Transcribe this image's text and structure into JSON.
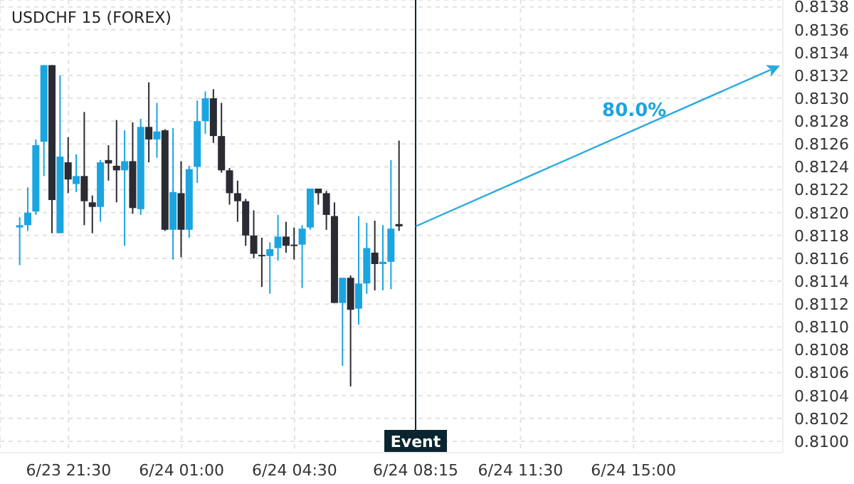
{
  "chart_data": {
    "type": "candlestick",
    "title": "USDCHF 15 (FOREX)",
    "categories": [
      null,
      null,
      null,
      null,
      null,
      null,
      null,
      null,
      "6/23 21:30",
      null,
      null,
      null,
      null,
      null,
      null,
      null,
      null,
      null,
      null,
      null,
      null,
      null,
      "6/24 01:00",
      null,
      null,
      null,
      null,
      null,
      null,
      null,
      null,
      null,
      null,
      null,
      null,
      null,
      "6/24 04:30",
      null,
      null,
      null,
      null,
      null,
      null,
      null,
      null,
      null,
      null,
      null,
      null,
      null,
      null,
      "6/24 08:15",
      null,
      null,
      null,
      null,
      null,
      null,
      null,
      null,
      null,
      null,
      null,
      null,
      "6/24 11:30",
      null,
      null,
      null,
      null,
      null,
      null,
      null,
      null,
      null,
      null,
      null,
      null,
      null,
      "6/24 15:00",
      null,
      null,
      null,
      null,
      null,
      null,
      null,
      null,
      null,
      null,
      null,
      null,
      null,
      null,
      null,
      null,
      null,
      null
    ],
    "ohlc": [
      null,
      null,
      [
        0.81187,
        0.81196,
        0.81154,
        0.81189
      ],
      [
        0.81189,
        0.81222,
        0.81184,
        0.812
      ],
      [
        0.81201,
        0.81264,
        0.81198,
        0.81259
      ],
      [
        0.81262,
        0.81329,
        0.81232,
        0.81329
      ],
      [
        0.81329,
        0.81329,
        0.81182,
        0.81211
      ],
      [
        0.81182,
        0.8132,
        0.81182,
        0.81249
      ],
      [
        0.81244,
        0.81266,
        0.81217,
        0.81229
      ],
      [
        0.81225,
        0.81251,
        0.81218,
        0.81232
      ],
      [
        0.81232,
        0.81288,
        0.81189,
        0.8121
      ],
      [
        0.81209,
        0.81215,
        0.81182,
        0.81205
      ],
      [
        0.81205,
        0.81246,
        0.81192,
        0.81244
      ],
      [
        0.81246,
        0.81259,
        0.81228,
        0.81243
      ],
      [
        0.81241,
        0.81281,
        0.81209,
        0.81237
      ],
      [
        0.81237,
        0.81272,
        0.81171,
        0.81245
      ],
      [
        0.81245,
        0.81279,
        0.81199,
        0.81204
      ],
      [
        0.81203,
        0.81282,
        0.81198,
        0.81275
      ],
      [
        0.81275,
        0.81314,
        0.81244,
        0.81264
      ],
      [
        0.81264,
        0.81296,
        0.81248,
        0.81271
      ],
      [
        0.81272,
        0.81273,
        0.81184,
        0.81185
      ],
      [
        0.81185,
        0.81274,
        0.81159,
        0.81218
      ],
      [
        0.81217,
        0.81245,
        0.81161,
        0.81185
      ],
      [
        0.81185,
        0.81241,
        0.81178,
        0.81238
      ],
      [
        0.8124,
        0.81298,
        0.81226,
        0.8128
      ],
      [
        0.8128,
        0.81306,
        0.81269,
        0.813
      ],
      [
        0.813,
        0.81308,
        0.81261,
        0.81267
      ],
      [
        0.81267,
        0.81296,
        0.81235,
        0.81237
      ],
      [
        0.81237,
        0.81239,
        0.81207,
        0.81217
      ],
      [
        0.81217,
        0.81228,
        0.81192,
        0.8121
      ],
      [
        0.8121,
        0.81212,
        0.81171,
        0.8118
      ],
      [
        0.8118,
        0.81202,
        0.8116,
        0.81164
      ],
      [
        0.81163,
        0.81178,
        0.81135,
        0.81162
      ],
      [
        0.81162,
        0.81174,
        0.81129,
        0.81168
      ],
      [
        0.81169,
        0.81198,
        0.81158,
        0.81179
      ],
      [
        0.81179,
        0.81192,
        0.81165,
        0.81171
      ],
      [
        0.81172,
        0.81187,
        0.81159,
        0.81171
      ],
      [
        0.81172,
        0.81189,
        0.81134,
        0.81186
      ],
      [
        0.81187,
        0.81221,
        0.81185,
        0.81221
      ],
      [
        0.81221,
        0.81221,
        0.81207,
        0.81217
      ],
      [
        0.81217,
        0.81219,
        0.81185,
        0.81198
      ],
      [
        0.81197,
        0.81209,
        0.81121,
        0.81121
      ],
      [
        0.81121,
        0.81143,
        0.81066,
        0.81143
      ],
      [
        0.81143,
        0.81145,
        0.81048,
        0.81115
      ],
      [
        0.81116,
        0.81197,
        0.81102,
        0.81138
      ],
      [
        0.81138,
        0.81191,
        0.81129,
        0.81169
      ],
      [
        0.81165,
        0.81193,
        0.81132,
        0.81155
      ],
      [
        0.81155,
        0.81189,
        0.81132,
        0.81157
      ],
      [
        0.81157,
        0.81246,
        0.81133,
        0.81186
      ],
      [
        0.8119,
        0.81263,
        0.81184,
        0.81188
      ],
      null,
      null,
      null,
      null,
      null,
      null,
      null,
      null,
      null,
      null,
      null,
      null,
      null,
      null,
      null,
      null,
      null,
      null,
      null,
      null,
      null,
      null,
      null,
      null,
      null,
      null,
      null,
      null,
      null,
      null,
      null,
      null,
      null,
      null,
      null,
      null,
      null,
      null,
      null,
      null,
      null,
      null,
      null,
      null,
      null,
      null,
      null
    ],
    "colors": [
      null,
      null,
      "#1ba5e0",
      "#1ba5e0",
      "#1ba5e0",
      "#1ba5e0",
      "#2a2b33",
      "#1ba5e0",
      "#2a2b33",
      "#1ba5e0",
      "#2a2b33",
      "#2a2b33",
      "#1ba5e0",
      "#2a2b33",
      "#2a2b33",
      "#1ba5e0",
      "#2a2b33",
      "#1ba5e0",
      "#2a2b33",
      "#1ba5e0",
      "#2a2b33",
      "#1ba5e0",
      "#2a2b33",
      "#1ba5e0",
      "#1ba5e0",
      "#1ba5e0",
      "#2a2b33",
      "#2a2b33",
      "#2a2b33",
      "#2a2b33",
      "#2a2b33",
      "#2a2b33",
      "#2a2b33",
      "#1ba5e0",
      "#1ba5e0",
      "#2a2b33",
      "#2a2b33",
      "#1ba5e0",
      "#1ba5e0",
      "#2a2b33",
      "#2a2b33",
      "#2a2b33",
      "#1ba5e0",
      "#2a2b33",
      "#1ba5e0",
      "#1ba5e0",
      "#2a2b33",
      "#1ba5e0",
      "#1ba5e0",
      "#2a2b33",
      null,
      null,
      null,
      null,
      null,
      null,
      null,
      null,
      null,
      null,
      null,
      null,
      null,
      null,
      null,
      null,
      null,
      null,
      null,
      null,
      null,
      null,
      null,
      null,
      null,
      null,
      null,
      null,
      null,
      null,
      null,
      null,
      null,
      null,
      null,
      null,
      null,
      null,
      null,
      null,
      null,
      null,
      null,
      null,
      null,
      null,
      null
    ],
    "ylim": [
      0.8099,
      0.81386
    ],
    "yticks": [
      {
        "value": 0.81,
        "label": "0.8100"
      },
      0.8102,
      0.8104,
      0.8106,
      0.8108,
      {
        "value": 0.811,
        "label": "0.8110"
      },
      0.8112,
      0.8114,
      0.8116,
      0.8118,
      {
        "value": 0.812,
        "label": "0.8120"
      },
      0.8122,
      0.8124,
      0.8126,
      0.8128,
      {
        "value": 0.813,
        "label": "0.8130"
      },
      0.8132,
      0.8134,
      0.8136,
      0.8138
    ],
    "grid": true,
    "ref_lines": [
      {
        "axis": "x",
        "value": "6/24 08:15",
        "label": "Event",
        "color": "#0b2530"
      }
    ],
    "annotations": [
      "80.0%"
    ]
  }
}
